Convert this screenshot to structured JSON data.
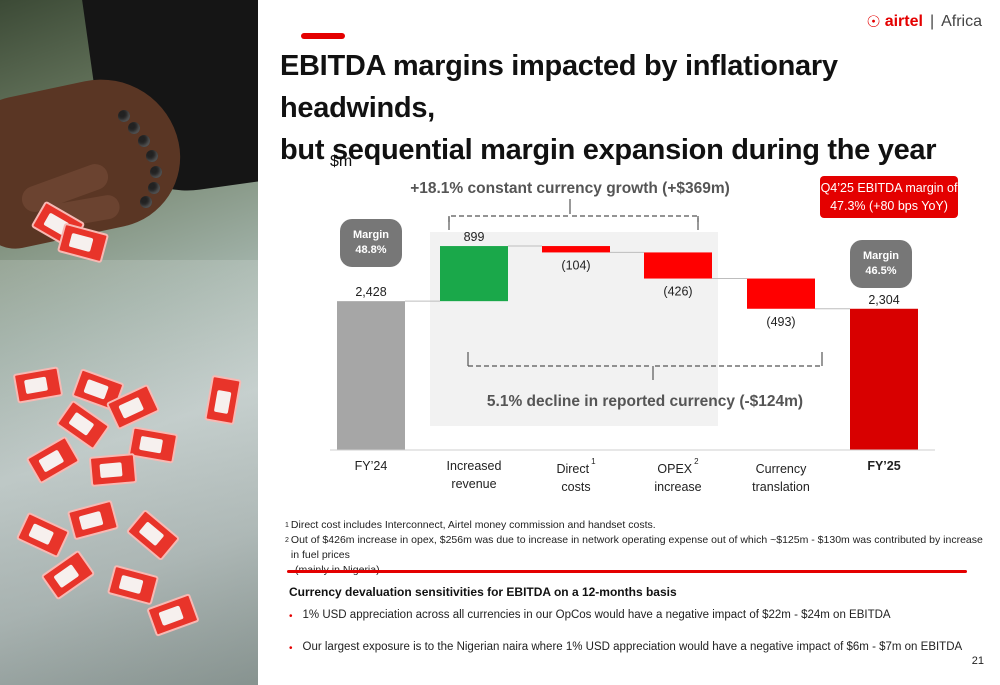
{
  "logo": {
    "mark": "a",
    "brand": "airtel",
    "separator": "|",
    "region": "Africa"
  },
  "title_line1": "EBITDA margins impacted by inflationary headwinds,",
  "title_line2": "but sequential margin expansion during the year",
  "unit": "$m",
  "callout": {
    "line1": "Q4’25 EBITDA margin of",
    "line2": "47.3% (+80 bps YoY)"
  },
  "badges": [
    {
      "label": "Margin",
      "value": "48.8%"
    },
    {
      "label": "Margin",
      "value": "46.5%"
    }
  ],
  "growth_label": "+18.1% constant currency growth (+$369m)",
  "decline_label": "5.1% decline in reported currency (-$124m)",
  "chart_data": {
    "type": "bar",
    "subtype": "waterfall",
    "ylabel": "$m",
    "categories": [
      "FY’24",
      "Increased revenue",
      "Direct costs",
      "OPEX increase",
      "Currency translation",
      "FY’25"
    ],
    "values": [
      2428,
      899,
      -104,
      -426,
      -493,
      2304
    ],
    "data_labels": [
      "2,428",
      "899",
      "(104)",
      "(426)",
      "(493)",
      "2,304"
    ],
    "measure": [
      "absolute",
      "relative",
      "relative",
      "relative",
      "relative",
      "total"
    ],
    "colors": {
      "start": "#a6a6a6",
      "increase": "#1aa84a",
      "decrease": "#ff0000",
      "total": "#d80000"
    }
  },
  "categories_display": [
    {
      "line1": "FY’24",
      "line2": "",
      "sup": ""
    },
    {
      "line1": "Increased",
      "line2": "revenue",
      "sup": ""
    },
    {
      "line1": "Direct",
      "line2": "costs",
      "sup": "1"
    },
    {
      "line1": "OPEX",
      "line2": "increase",
      "sup": "2"
    },
    {
      "line1": "Currency",
      "line2": "translation",
      "sup": ""
    },
    {
      "line1": "FY’25",
      "line2": "",
      "sup": ""
    }
  ],
  "footnotes": [
    {
      "num": "1",
      "text": "Direct cost includes Interconnect, Airtel money commission and handset costs."
    },
    {
      "num": "2",
      "text": "Out of $426m increase in opex, $256m was due to increase in network operating expense out of which ~$125m - $130m was contributed by increase in fuel prices",
      "cont": "(mainly in Nigeria)"
    }
  ],
  "sensitivities": {
    "title": "Currency devaluation sensitivities for EBITDA on a 12-months basis",
    "bullets": [
      "1% USD appreciation across all currencies in our OpCos would have a negative impact of $22m - $24m on EBITDA",
      "Our largest exposure is to the Nigerian naira where 1% USD appreciation would have a negative impact of $6m - $7m on EBITDA"
    ]
  },
  "page_number": "21"
}
